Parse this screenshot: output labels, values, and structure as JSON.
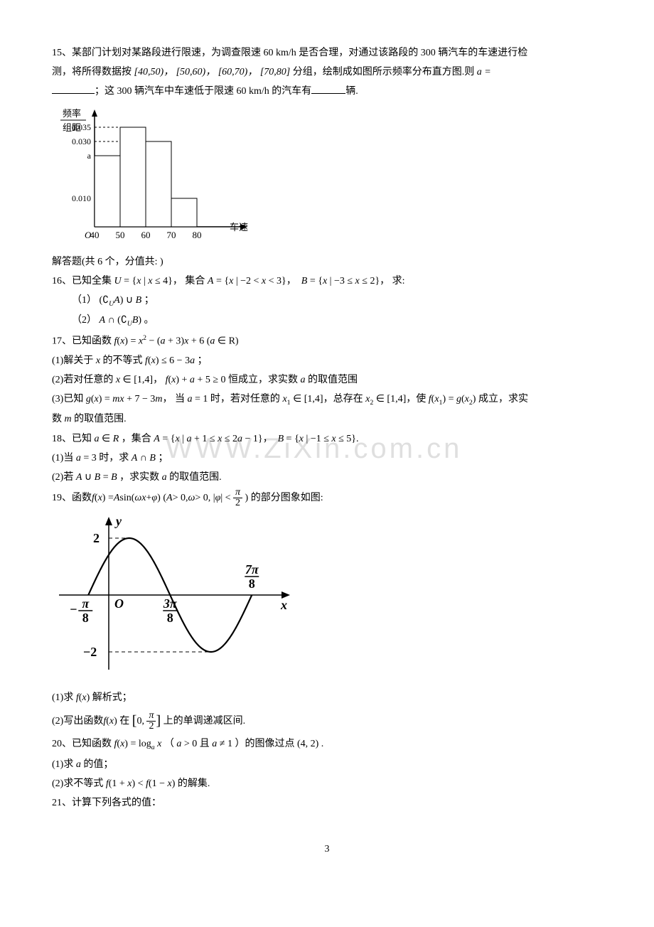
{
  "q15": {
    "prefix": "15、",
    "t1": "某部门计划对某路段进行限速，为调查限速 60 km/h 是否合理，对通过该路段的 300 辆汽车的车速进行检",
    "t2_a": "测，将所得数据按 ",
    "intervals": "[40,50)， [50,60)， [60,70)， [70,80]",
    "t2_b": " 分组，绘制成如图所示频率分布直方图.则 ",
    "a_eq": "a =",
    "t3_a": "；这 300 辆汽车中车速低于限速 60 km/h 的汽车有",
    "t3_b": "辆.",
    "hist": {
      "ylabel_top": "频率",
      "ylabel_bot": "组距",
      "xlabel": "车速",
      "yticks": [
        {
          "v": 0.035,
          "label": "0.035",
          "y": 30
        },
        {
          "v": 0.03,
          "label": "0.030",
          "y": 40
        },
        {
          "v": 0.025,
          "label": "a",
          "y": 50
        }
      ],
      "ytick_010": {
        "label": "0.010",
        "y": 80
      },
      "xticks": [
        "40",
        "50",
        "60",
        "70",
        "80"
      ],
      "bars": [
        {
          "x": 40,
          "h": 0.025
        },
        {
          "x": 50,
          "h": 0.035
        },
        {
          "x": 60,
          "h": 0.03
        },
        {
          "x": 70,
          "h": 0.01
        }
      ],
      "origin": "O",
      "axis_color": "#000000",
      "bar_stroke": "#000000",
      "bar_fill": "#ffffff",
      "dash_color": "#000000",
      "bg": "#ffffff",
      "font_size": 13
    }
  },
  "section_header": "解答题(共 6 个，分值共: )",
  "q16": {
    "prefix": "16、",
    "t1": "已知全集 U = { x | x ≤ 4 }， 集合 A = { x | −2 < x < 3 }，  B = { x | −3 ≤ x ≤ 2 }， 求:",
    "p1": "（1） (∁_U A) ∪ B ；",
    "p2": "（2） A ∩ (∁_U B) 。"
  },
  "q17": {
    "prefix": "17、",
    "t1": "已知函数 f(x) = x² − (a + 3)x + 6 (a ∈ R)",
    "p1": "(1)解关于 x 的不等式 f(x) ≤ 6 − 3a ；",
    "p2": "(2)若对任意的 x ∈ [1,4]， f(x) + a + 5 ≥ 0 恒成立，求实数 a 的取值范围",
    "p3a": "(3)已知 g(x) = mx + 7 − 3m， 当 a = 1 时，若对任意的 x₁ ∈ [1,4]，总存在 x₂ ∈ [1,4]，使 f(x₁) = g(x₂) 成立，求实",
    "p3b": "数 m 的取值范围."
  },
  "q18": {
    "prefix": "18、",
    "t1": "已知 a ∈ R ，集合 A = { x | a + 1 ≤ x ≤ 2a − 1 }，  B = { x | −1 ≤ x ≤ 5 }.",
    "p1": "(1)当 a = 3 时，求 A ∩ B ；",
    "p2": "(2)若 A ∪ B = B ，求实数 a 的取值范围."
  },
  "watermark": "WWW.ZiXin.com.cn",
  "q19": {
    "prefix": "19、",
    "t1": "函数 f(x) = A sin(ωx + φ) (A > 0, ω > 0, |φ| < π/2) 的部分图象如图:",
    "graph": {
      "ylabel": "y",
      "xlabel": "x",
      "ymax_label": "2",
      "ymin_label": "−2",
      "x_neg_label": "− π/8",
      "x_zero_label": "O",
      "x_mid_label": "3π/8",
      "x_right_label": "7π/8",
      "axis_color": "#000000",
      "curve_color": "#000000",
      "bg": "#ffffff",
      "stroke_width": 2.2,
      "font_size": 18
    },
    "p1": "(1)求 f(x) 解析式；",
    "p2": "(2)写出函数 f(x) 在 [0, π/2] 上的单调递减区间."
  },
  "q20": {
    "prefix": "20、",
    "t1": "已知函数 f(x) = log_a x （ a > 0 且 a ≠ 1 ）的图像过点 (4, 2) .",
    "p1": "(1)求 a 的值；",
    "p2": "(2)求不等式 f(1 + x) < f(1 − x) 的解集."
  },
  "q21": {
    "prefix": "21、",
    "t1": "计算下列各式的值："
  },
  "page_number": "3"
}
